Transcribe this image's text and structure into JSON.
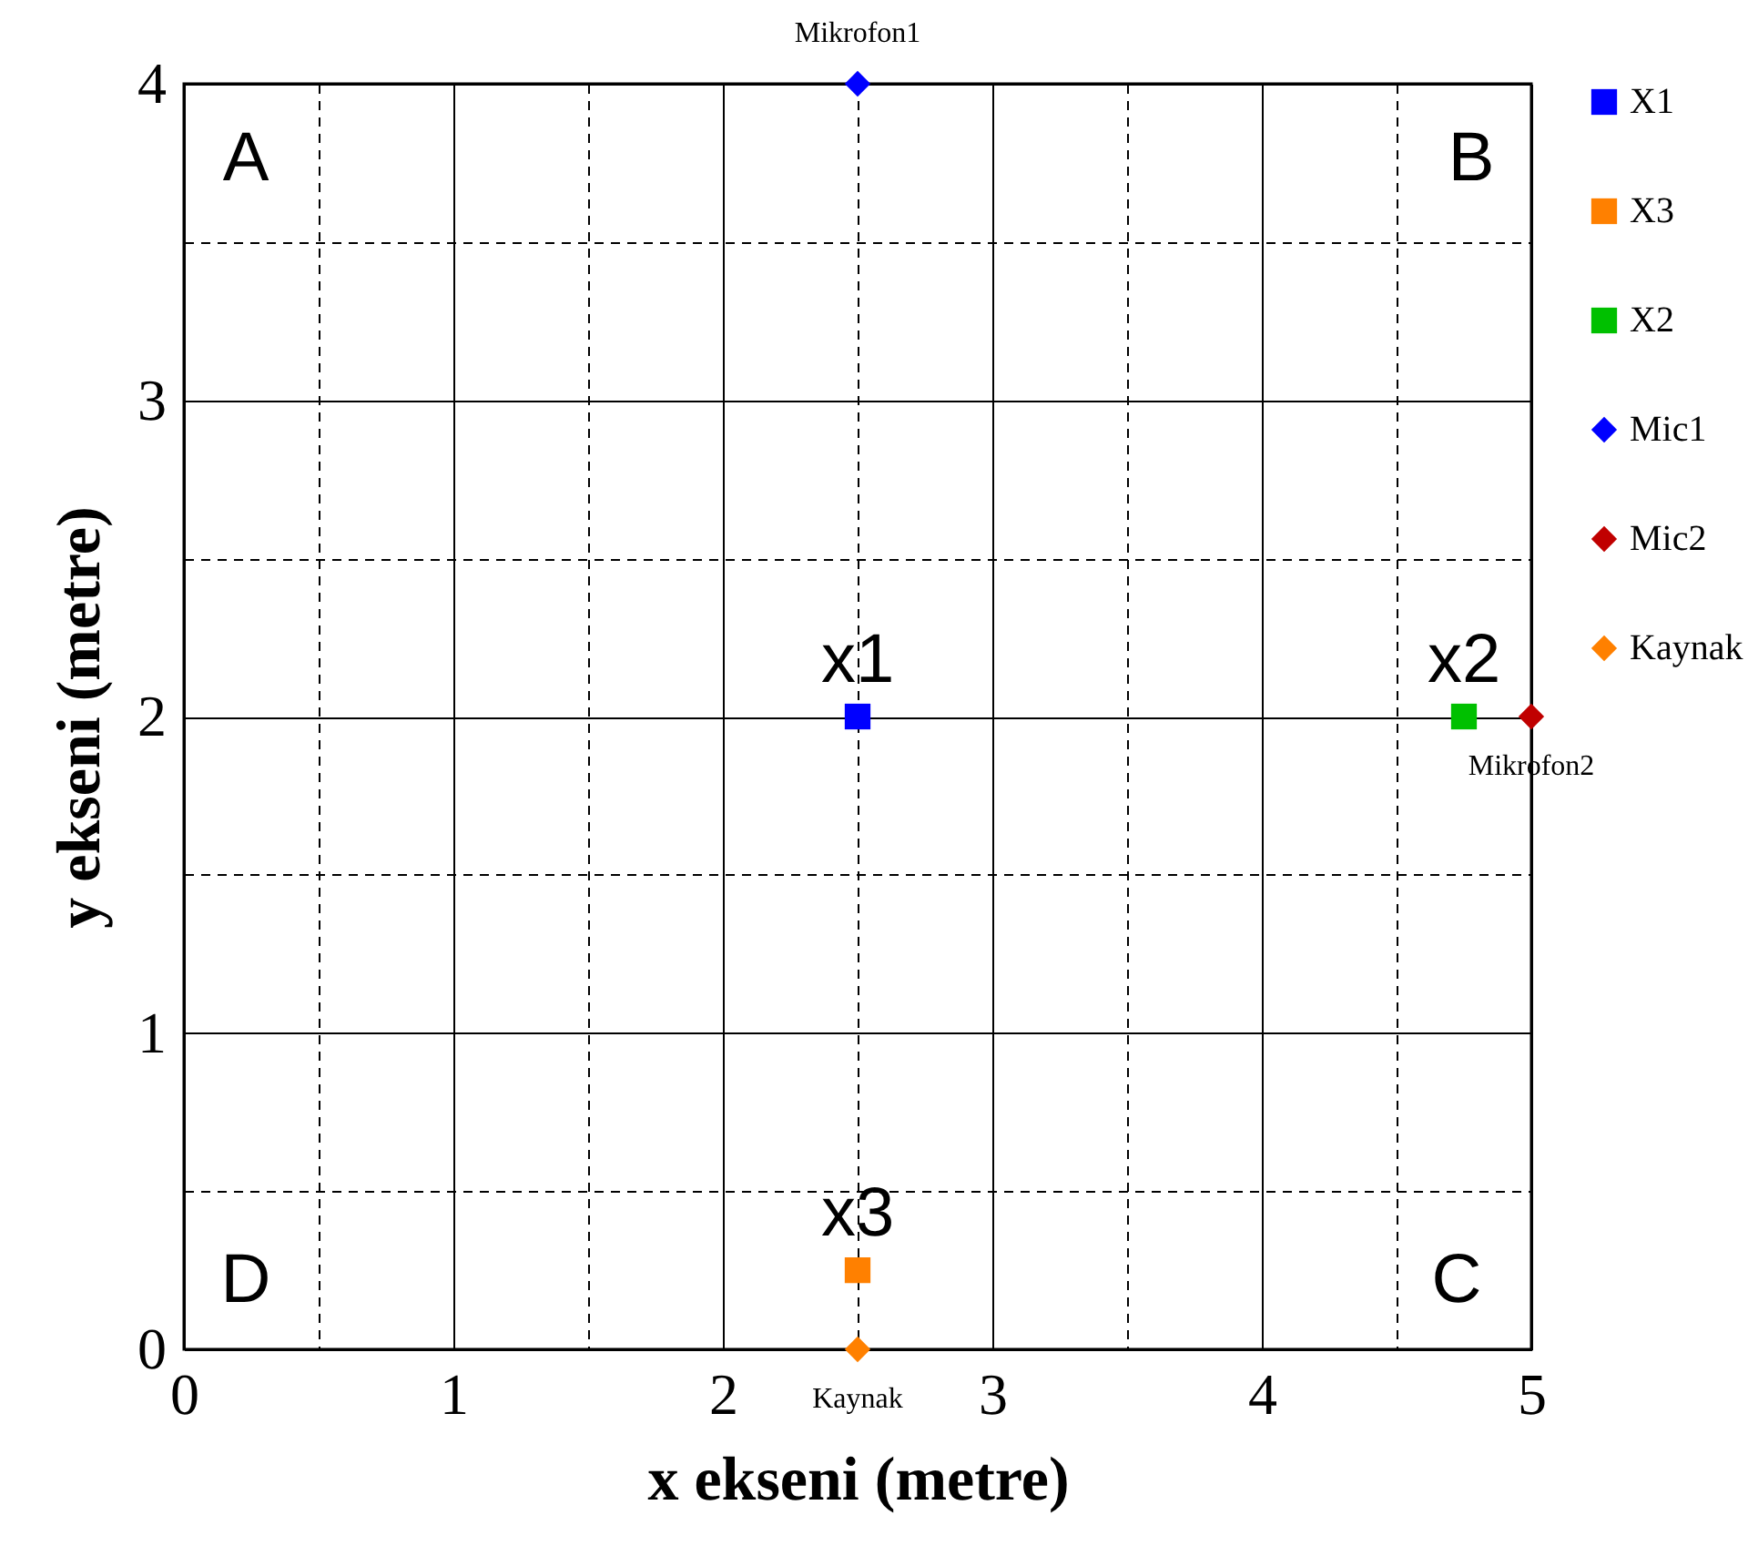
{
  "chart_data": {
    "type": "scatter",
    "xlabel": "x ekseni (metre)",
    "ylabel": "y ekseni (metre)",
    "xlim": [
      0,
      5
    ],
    "ylim": [
      0,
      4
    ],
    "xticks": [
      0,
      {
        "value": 0.5,
        "label": null
      },
      1,
      {
        "value": 1.5,
        "label": null
      },
      2,
      {
        "value": 2.5,
        "label": null
      },
      3,
      {
        "value": 3.5,
        "label": null
      },
      4,
      {
        "value": 4.5,
        "label": null
      },
      5
    ],
    "yticks": [
      0,
      {
        "value": 0.5,
        "label": null
      },
      1,
      {
        "value": 1.5,
        "label": null
      },
      2,
      {
        "value": 2.5,
        "label": null
      },
      3,
      {
        "value": 3.5,
        "label": null
      },
      4
    ],
    "grid": true,
    "legend": "right",
    "series": [
      {
        "name": "X1",
        "color": "#0000ff",
        "marker": "square",
        "x": [
          2.5
        ],
        "values": [
          2
        ]
      },
      {
        "name": "X3",
        "color": "#ff8000",
        "marker": "square",
        "x": [
          2.5
        ],
        "values": [
          0.25
        ]
      },
      {
        "name": "X2",
        "color": "#00c000",
        "marker": "square",
        "x": [
          4.75
        ],
        "values": [
          2
        ]
      },
      {
        "name": "Mic1",
        "color": "#0000ff",
        "marker": "diamond",
        "x": [
          2.5
        ],
        "values": [
          4
        ]
      },
      {
        "name": "Mic2",
        "color": "#c00000",
        "marker": "diamond",
        "x": [
          5
        ],
        "values": [
          2
        ]
      },
      {
        "name": "Kaynak",
        "color": "#ff8000",
        "marker": "diamond",
        "x": [
          2.5
        ],
        "values": [
          0
        ]
      }
    ],
    "annotations": [
      {
        "text": "Mikrofon1",
        "x": 2.5,
        "y": 4
      },
      {
        "text": "x1",
        "x": 2.5,
        "y": 2
      },
      {
        "text": "x2",
        "x": 4.75,
        "y": 2
      },
      {
        "text": "Mikrofon2",
        "x": 5,
        "y": 2
      },
      {
        "text": "x3",
        "x": 2.5,
        "y": 0.25
      },
      {
        "text": "Kaynak",
        "x": 2.5,
        "y": 0
      },
      "A",
      "B",
      "C",
      "D"
    ]
  }
}
